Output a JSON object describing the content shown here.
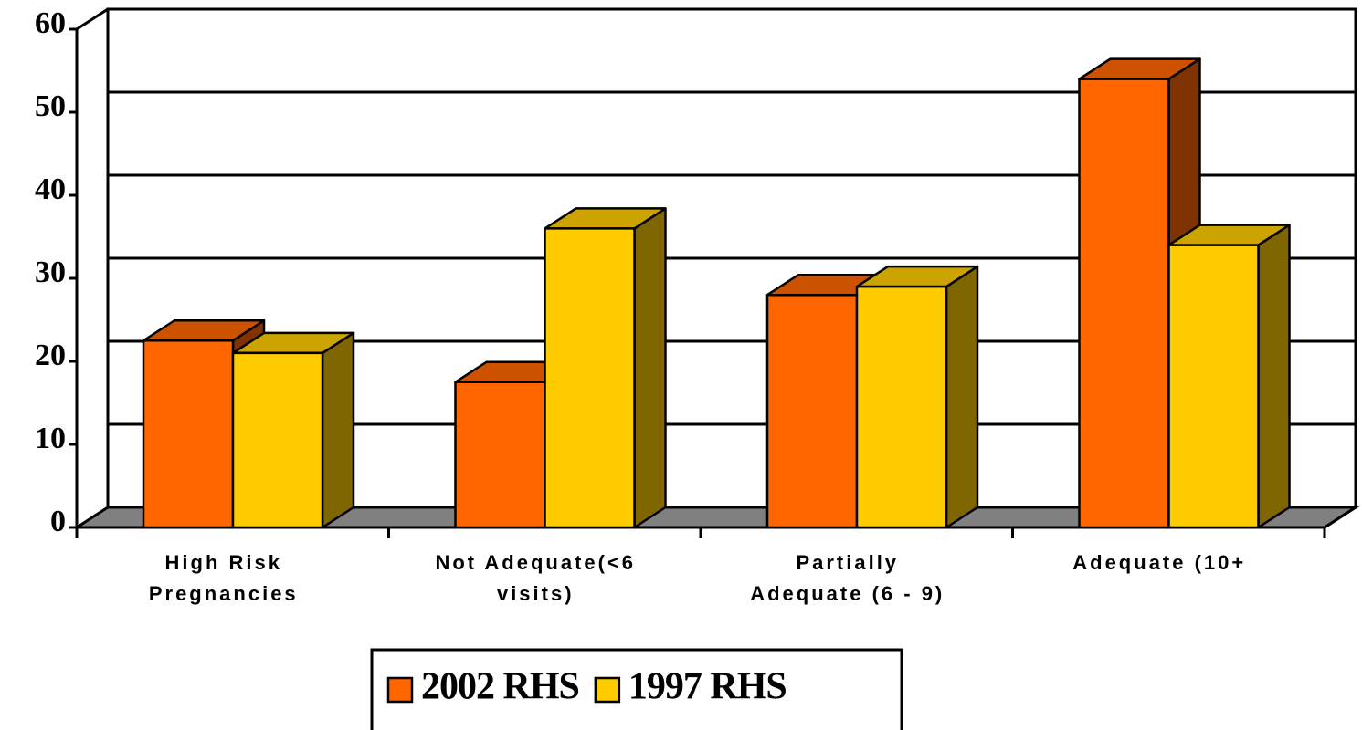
{
  "chart_data": {
    "type": "bar3d",
    "categories": [
      "High Risk\nPregnancies",
      "Not Adequate(<6\nvisits)",
      "Partially\nAdequate (6 - 9)",
      "Adequate (10+"
    ],
    "series": [
      {
        "name": "2002 RHS",
        "color": "#ff6600",
        "values": [
          22.5,
          17.5,
          28,
          54
        ]
      },
      {
        "name": "1997 RHS",
        "color": "#ffcc00",
        "values": [
          21,
          36,
          29,
          34
        ]
      }
    ],
    "ylim": [
      0,
      60
    ],
    "yticks": [
      0,
      10,
      20,
      30,
      40,
      50,
      60
    ],
    "grid": true,
    "legend": "bottom"
  }
}
